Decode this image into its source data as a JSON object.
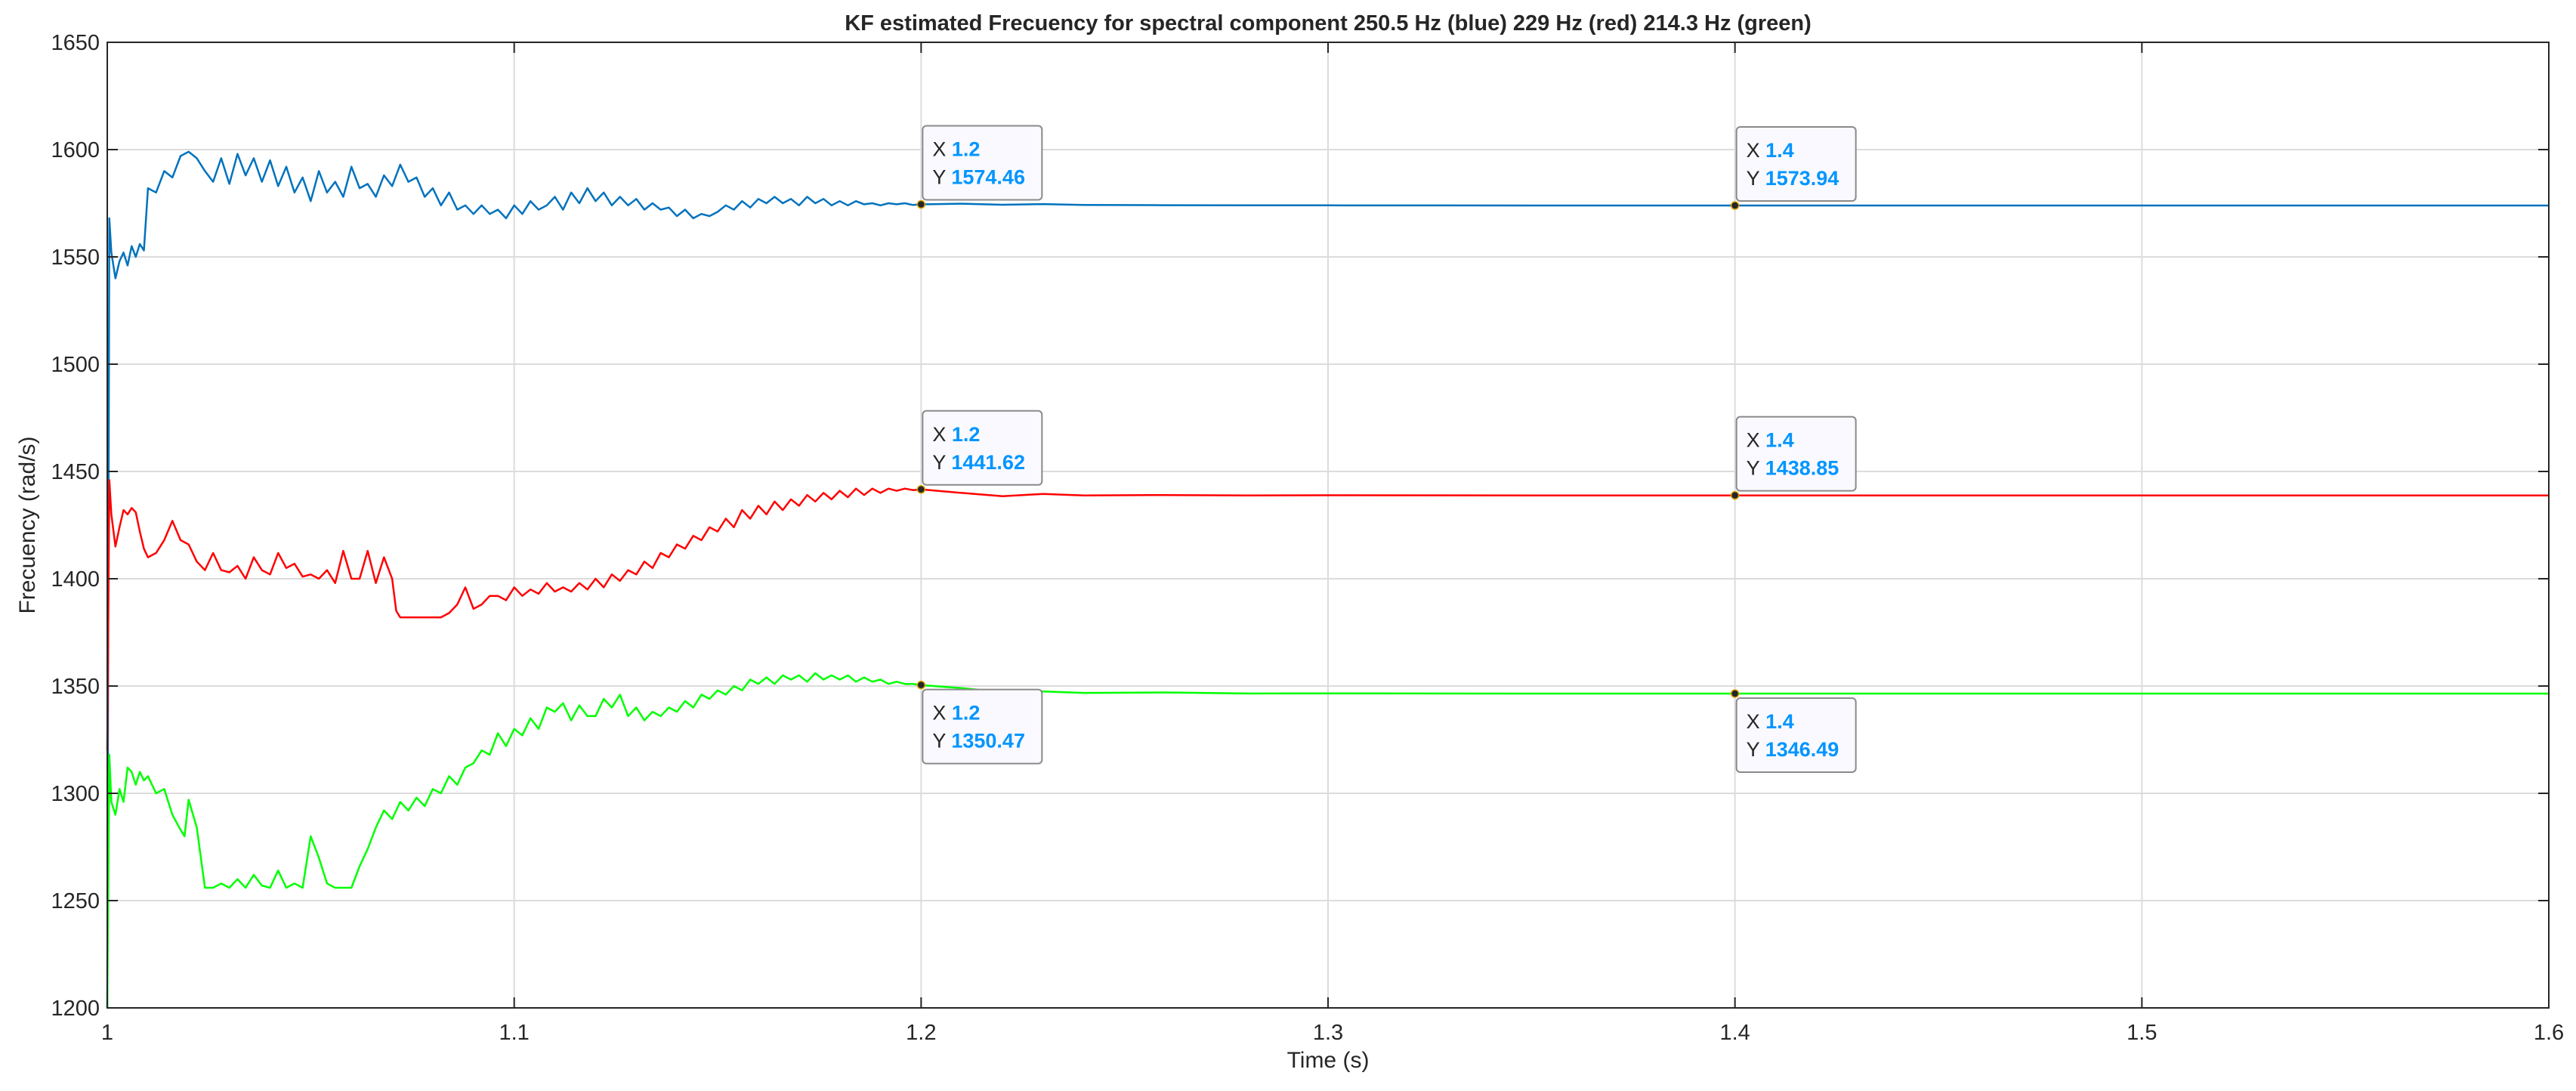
{
  "chart_data": {
    "type": "line",
    "title": "KF estimated Frecuency for spectral component 250.5 Hz (blue) 229 Hz (red) 214.3 Hz (green)",
    "xlabel": "Time (s)",
    "ylabel": "Frecuency (rad/s)",
    "xlim": [
      1,
      1.6
    ],
    "ylim": [
      1200,
      1650
    ],
    "xticks": [
      1,
      1.1,
      1.2,
      1.3,
      1.4,
      1.5,
      1.6
    ],
    "xtick_labels": [
      "1",
      "1.1",
      "1.2",
      "1.3",
      "1.4",
      "1.5",
      "1.6"
    ],
    "yticks": [
      1200,
      1250,
      1300,
      1350,
      1400,
      1450,
      1500,
      1550,
      1600,
      1650
    ],
    "ytick_labels": [
      "1200",
      "1250",
      "1300",
      "1350",
      "1400",
      "1450",
      "1500",
      "1550",
      "1600",
      "1650"
    ],
    "grid": true,
    "colors": {
      "blue": "#0072BD",
      "red": "#FF0000",
      "green": "#00FF00",
      "datatip_value": "#0095FF",
      "grid": "#DCDCDC",
      "axis": "#262626"
    },
    "series": [
      {
        "color": "#0072BD",
        "x": [
          1,
          1.0005,
          1.001,
          1.002,
          1.003,
          1.004,
          1.005,
          1.006,
          1.007,
          1.008,
          1.009,
          1.01,
          1.012,
          1.014,
          1.016,
          1.018,
          1.02,
          1.022,
          1.024,
          1.026,
          1.028,
          1.03,
          1.032,
          1.034,
          1.036,
          1.038,
          1.04,
          1.042,
          1.044,
          1.046,
          1.048,
          1.05,
          1.052,
          1.054,
          1.056,
          1.058,
          1.06,
          1.062,
          1.064,
          1.066,
          1.068,
          1.07,
          1.072,
          1.074,
          1.076,
          1.078,
          1.08,
          1.082,
          1.084,
          1.086,
          1.088,
          1.09,
          1.092,
          1.094,
          1.096,
          1.098,
          1.1,
          1.102,
          1.104,
          1.106,
          1.108,
          1.11,
          1.112,
          1.114,
          1.116,
          1.118,
          1.12,
          1.122,
          1.124,
          1.126,
          1.128,
          1.13,
          1.132,
          1.134,
          1.136,
          1.138,
          1.14,
          1.142,
          1.144,
          1.146,
          1.148,
          1.15,
          1.152,
          1.154,
          1.156,
          1.158,
          1.16,
          1.162,
          1.164,
          1.166,
          1.168,
          1.17,
          1.172,
          1.174,
          1.176,
          1.178,
          1.18,
          1.182,
          1.184,
          1.186,
          1.188,
          1.19,
          1.192,
          1.194,
          1.196,
          1.198,
          1.2,
          1.21,
          1.22,
          1.23,
          1.24,
          1.26,
          1.28,
          1.3,
          1.35,
          1.4,
          1.45,
          1.5,
          1.55,
          1.6
        ],
        "y": [
          1200,
          1568,
          1552,
          1540,
          1548,
          1552,
          1546,
          1555,
          1550,
          1556,
          1553,
          1582,
          1580,
          1590,
          1587,
          1597,
          1599,
          1596,
          1590,
          1585,
          1596,
          1584,
          1598,
          1588,
          1596,
          1585,
          1595,
          1583,
          1592,
          1580,
          1587,
          1576,
          1590,
          1580,
          1585,
          1578,
          1592,
          1582,
          1584,
          1578,
          1588,
          1583,
          1593,
          1585,
          1587,
          1578,
          1582,
          1574,
          1580,
          1572,
          1574,
          1570,
          1574,
          1570,
          1572,
          1568,
          1574,
          1570,
          1576,
          1572,
          1574,
          1578,
          1572,
          1580,
          1575,
          1582,
          1576,
          1580,
          1574,
          1578,
          1574,
          1577,
          1572,
          1575,
          1572,
          1573,
          1569,
          1572,
          1568,
          1570,
          1569,
          1571,
          1574,
          1572,
          1576,
          1573,
          1577,
          1575,
          1578,
          1575,
          1577,
          1574,
          1578,
          1575,
          1577,
          1574,
          1576,
          1574,
          1576,
          1574.5,
          1575,
          1574,
          1575,
          1574.5,
          1575,
          1574.2,
          1574.46,
          1574.8,
          1574.3,
          1574.6,
          1574.2,
          1574.1,
          1574,
          1574,
          1573.95,
          1573.94,
          1573.94,
          1573.94,
          1573.94,
          1573.94
        ]
      },
      {
        "color": "#FF0000",
        "x": [
          1,
          1.0005,
          1.001,
          1.002,
          1.003,
          1.004,
          1.005,
          1.006,
          1.007,
          1.008,
          1.009,
          1.01,
          1.012,
          1.014,
          1.016,
          1.018,
          1.02,
          1.022,
          1.024,
          1.026,
          1.028,
          1.03,
          1.032,
          1.034,
          1.036,
          1.038,
          1.04,
          1.042,
          1.044,
          1.046,
          1.048,
          1.05,
          1.052,
          1.054,
          1.056,
          1.058,
          1.06,
          1.062,
          1.064,
          1.066,
          1.068,
          1.07,
          1.071,
          1.072,
          1.074,
          1.076,
          1.078,
          1.08,
          1.082,
          1.084,
          1.086,
          1.088,
          1.09,
          1.092,
          1.094,
          1.096,
          1.098,
          1.1,
          1.102,
          1.104,
          1.106,
          1.108,
          1.11,
          1.112,
          1.114,
          1.116,
          1.118,
          1.12,
          1.122,
          1.124,
          1.126,
          1.128,
          1.13,
          1.132,
          1.134,
          1.136,
          1.138,
          1.14,
          1.142,
          1.144,
          1.146,
          1.148,
          1.15,
          1.152,
          1.154,
          1.156,
          1.158,
          1.16,
          1.162,
          1.164,
          1.166,
          1.168,
          1.17,
          1.172,
          1.174,
          1.176,
          1.178,
          1.18,
          1.182,
          1.184,
          1.186,
          1.188,
          1.19,
          1.192,
          1.194,
          1.196,
          1.198,
          1.2,
          1.21,
          1.22,
          1.23,
          1.24,
          1.26,
          1.28,
          1.3,
          1.35,
          1.4,
          1.45,
          1.5,
          1.55,
          1.6
        ],
        "y": [
          1320,
          1446,
          1430,
          1415,
          1424,
          1432,
          1430,
          1433,
          1431,
          1422,
          1414,
          1410,
          1412,
          1418,
          1427,
          1418,
          1416,
          1408,
          1404,
          1412,
          1404,
          1403,
          1406,
          1400,
          1410,
          1404,
          1402,
          1412,
          1405,
          1407,
          1401,
          1402,
          1400,
          1404,
          1398,
          1413,
          1400,
          1400,
          1413,
          1398,
          1410,
          1400,
          1385,
          1382,
          1382,
          1382,
          1382,
          1382,
          1382,
          1384,
          1388,
          1396,
          1386,
          1388,
          1392,
          1392,
          1390,
          1396,
          1392,
          1395,
          1393,
          1398,
          1394,
          1396,
          1394,
          1398,
          1395,
          1400,
          1396,
          1402,
          1399,
          1404,
          1402,
          1408,
          1405,
          1412,
          1410,
          1416,
          1414,
          1420,
          1418,
          1424,
          1422,
          1428,
          1424,
          1432,
          1428,
          1434,
          1430,
          1436,
          1432,
          1437,
          1434,
          1439,
          1436,
          1440,
          1437,
          1441,
          1438,
          1442,
          1439,
          1442,
          1440,
          1442,
          1441,
          1442,
          1441.3,
          1441.62,
          1440,
          1438.5,
          1439.5,
          1438.8,
          1439,
          1438.8,
          1438.9,
          1438.85,
          1438.85,
          1438.85,
          1438.85,
          1438.85,
          1438.85
        ],
        "_tail": ""
      },
      {
        "color": "#00FF00",
        "x": [
          1,
          1.0005,
          1.001,
          1.002,
          1.003,
          1.004,
          1.005,
          1.006,
          1.007,
          1.008,
          1.009,
          1.01,
          1.012,
          1.014,
          1.016,
          1.018,
          1.019,
          1.02,
          1.022,
          1.024,
          1.026,
          1.028,
          1.03,
          1.032,
          1.034,
          1.036,
          1.038,
          1.04,
          1.042,
          1.044,
          1.046,
          1.048,
          1.05,
          1.052,
          1.054,
          1.056,
          1.058,
          1.06,
          1.062,
          1.064,
          1.066,
          1.068,
          1.07,
          1.072,
          1.074,
          1.076,
          1.078,
          1.08,
          1.082,
          1.084,
          1.086,
          1.088,
          1.09,
          1.092,
          1.094,
          1.096,
          1.098,
          1.1,
          1.102,
          1.104,
          1.106,
          1.108,
          1.11,
          1.112,
          1.114,
          1.116,
          1.118,
          1.12,
          1.122,
          1.124,
          1.126,
          1.128,
          1.13,
          1.132,
          1.134,
          1.136,
          1.138,
          1.14,
          1.142,
          1.144,
          1.146,
          1.148,
          1.15,
          1.152,
          1.154,
          1.156,
          1.158,
          1.16,
          1.162,
          1.164,
          1.166,
          1.168,
          1.17,
          1.172,
          1.174,
          1.176,
          1.178,
          1.18,
          1.182,
          1.184,
          1.186,
          1.188,
          1.19,
          1.192,
          1.194,
          1.196,
          1.198,
          1.2,
          1.21,
          1.22,
          1.23,
          1.24,
          1.26,
          1.28,
          1.3,
          1.35,
          1.4,
          1.45,
          1.5,
          1.55,
          1.6
        ],
        "y": [
          1200,
          1318,
          1296,
          1290,
          1302,
          1296,
          1312,
          1310,
          1304,
          1310,
          1306,
          1308,
          1300,
          1302,
          1290,
          1283,
          1280,
          1297,
          1284,
          1256,
          1256,
          1258,
          1256,
          1260,
          1256,
          1262,
          1257,
          1256,
          1264,
          1256,
          1258,
          1256,
          1280,
          1270,
          1258,
          1256,
          1256,
          1256,
          1266,
          1274,
          1284,
          1292,
          1288,
          1296,
          1292,
          1298,
          1294,
          1302,
          1300,
          1308,
          1304,
          1312,
          1314,
          1320,
          1318,
          1328,
          1322,
          1330,
          1327,
          1335,
          1330,
          1340,
          1338,
          1342,
          1334,
          1341,
          1336,
          1336,
          1344,
          1340,
          1346,
          1336,
          1340,
          1334,
          1338,
          1336,
          1340,
          1338,
          1343,
          1340,
          1346,
          1344,
          1348,
          1346,
          1350,
          1348,
          1353,
          1351,
          1354,
          1351,
          1355,
          1353,
          1355,
          1352,
          1356,
          1353,
          1355,
          1353,
          1355,
          1352,
          1354,
          1352,
          1353,
          1351,
          1352,
          1351,
          1351,
          1350.47,
          1349,
          1347.2,
          1347.5,
          1346.8,
          1347,
          1346.5,
          1346.6,
          1346.49,
          1346.49,
          1346.49,
          1346.49,
          1346.49,
          1346.49
        ]
      }
    ],
    "datatips": [
      {
        "x": 1.2,
        "y": 1574.46,
        "x_prefix": "X",
        "y_prefix": "Y",
        "x_text": "1.2",
        "y_text": "1574.46",
        "placement": "above"
      },
      {
        "x": 1.4,
        "y": 1573.94,
        "x_prefix": "X",
        "y_prefix": "Y",
        "x_text": "1.4",
        "y_text": "1573.94",
        "placement": "above"
      },
      {
        "x": 1.2,
        "y": 1441.62,
        "x_prefix": "X",
        "y_prefix": "Y",
        "x_text": "1.2",
        "y_text": "1441.62",
        "placement": "above"
      },
      {
        "x": 1.4,
        "y": 1438.85,
        "x_prefix": "X",
        "y_prefix": "Y",
        "x_text": "1.4",
        "y_text": "1438.85",
        "placement": "above"
      },
      {
        "x": 1.2,
        "y": 1350.47,
        "x_prefix": "X",
        "y_prefix": "Y",
        "x_text": "1.2",
        "y_text": "1350.47",
        "placement": "below"
      },
      {
        "x": 1.4,
        "y": 1346.49,
        "x_prefix": "X",
        "y_prefix": "Y",
        "x_text": "1.4",
        "y_text": "1346.49",
        "placement": "below"
      }
    ]
  }
}
